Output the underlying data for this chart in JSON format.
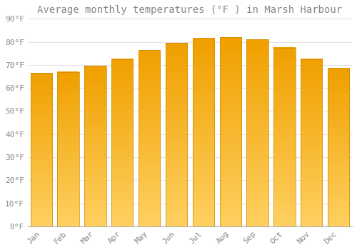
{
  "title": "Average monthly temperatures (°F ) in Marsh Harbour",
  "months": [
    "Jan",
    "Feb",
    "Mar",
    "Apr",
    "May",
    "Jun",
    "Jul",
    "Aug",
    "Sep",
    "Oct",
    "Nov",
    "Dec"
  ],
  "values": [
    66.5,
    67.0,
    69.5,
    72.5,
    76.5,
    79.5,
    81.5,
    82.0,
    81.0,
    77.5,
    72.5,
    68.5
  ],
  "bar_color_top": "#F0A000",
  "bar_color_bottom": "#FFD060",
  "bar_edge_color": "#CC8800",
  "background_color": "#FFFFFF",
  "grid_color": "#DDDDDD",
  "text_color": "#888888",
  "ylim": [
    0,
    90
  ],
  "yticks": [
    0,
    10,
    20,
    30,
    40,
    50,
    60,
    70,
    80,
    90
  ],
  "ytick_labels": [
    "0°F",
    "10°F",
    "20°F",
    "30°F",
    "40°F",
    "50°F",
    "60°F",
    "70°F",
    "80°F",
    "90°F"
  ],
  "title_fontsize": 10,
  "tick_fontsize": 8,
  "bar_width": 0.8
}
